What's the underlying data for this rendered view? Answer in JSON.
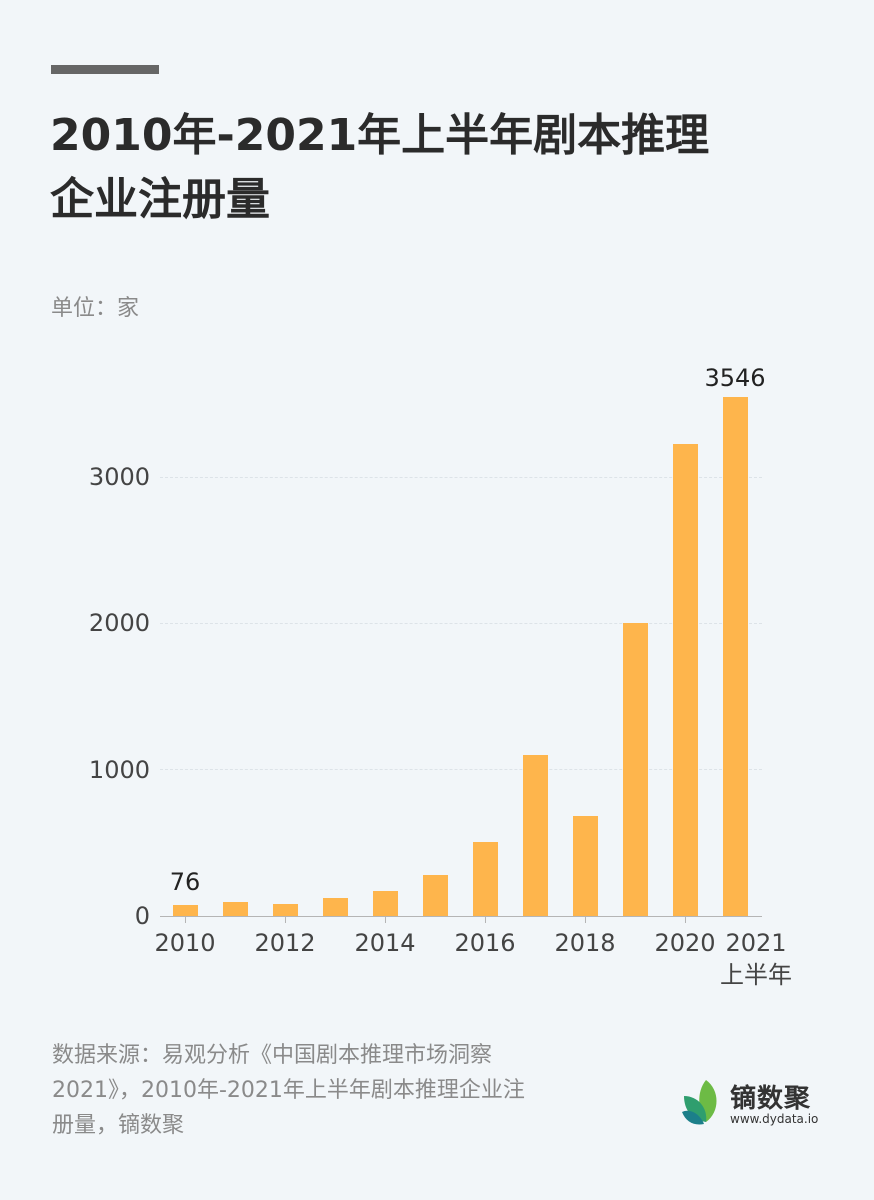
{
  "header": {
    "title_line1": "2010年-2021年上半年剧本推理",
    "title_line2": "企业注册量",
    "unit": "单位：家"
  },
  "chart_data": {
    "type": "bar",
    "title": "2010年-2021年上半年剧本推理企业注册量",
    "xlabel": "",
    "ylabel": "单位：家",
    "categories": [
      "2010",
      "2011",
      "2012",
      "2013",
      "2014",
      "2015",
      "2016",
      "2017",
      "2018",
      "2019",
      "2020",
      "2021上半年"
    ],
    "values": [
      76,
      95,
      84,
      123,
      170,
      280,
      505,
      1100,
      680,
      2000,
      3220,
      3546
    ],
    "ylim": [
      0,
      3600
    ],
    "yticks": [
      "0",
      "1000",
      "2000",
      "3000"
    ],
    "xtick_labels": [
      "2010",
      "2012",
      "2014",
      "2016",
      "2018",
      "2020",
      "2021"
    ],
    "xtick_label_extra": "上半年",
    "data_labels": [
      {
        "category": "2010",
        "label": "76"
      },
      {
        "category": "2021上半年",
        "label": "3546"
      }
    ],
    "grid": "horizontal dashed",
    "bar_color": "#feb54c",
    "legend": "none"
  },
  "footer": {
    "source_line1": "数据来源：易观分析《中国剧本推理市场洞察",
    "source_line2": "2021》，2010年-2021年上半年剧本推理企业注",
    "source_line3": "册量，镝数聚",
    "logo_name": "镝数聚",
    "logo_url": "www.dydata.io"
  }
}
